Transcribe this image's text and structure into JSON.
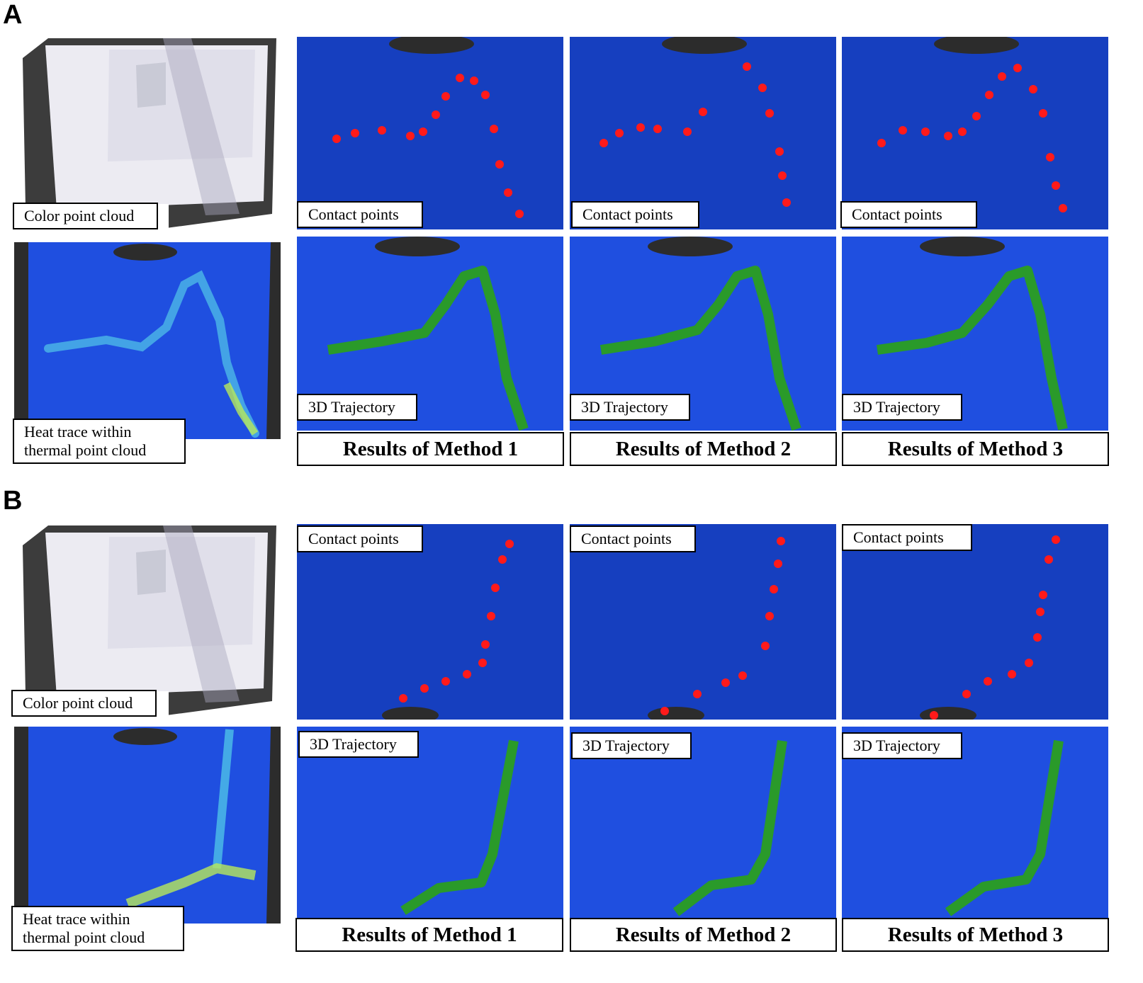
{
  "figure": {
    "panels": [
      {
        "letter": "A",
        "color_label": "Color point cloud",
        "heat_label_line1": "Heat trace within",
        "heat_label_line2": "thermal point cloud",
        "methods": [
          {
            "contact_label": "Contact points",
            "trajectory_label": "3D Trajectory",
            "result_label": "Results of Method 1"
          },
          {
            "contact_label": "Contact points",
            "trajectory_label": "3D Trajectory",
            "result_label": "Results of Method 2"
          },
          {
            "contact_label": "Contact points",
            "trajectory_label": "3D Trajectory",
            "result_label": "Results of Method 3"
          }
        ]
      },
      {
        "letter": "B",
        "color_label": "Color point cloud",
        "heat_label_line1": "Heat trace within",
        "heat_label_line2": "thermal point cloud",
        "methods": [
          {
            "contact_label": "Contact points",
            "trajectory_label": "3D Trajectory",
            "result_label": "Results of Method 1"
          },
          {
            "contact_label": "Contact points",
            "trajectory_label": "3D Trajectory",
            "result_label": "Results of Method 2"
          },
          {
            "contact_label": "Contact points",
            "trajectory_label": "3D Trajectory",
            "result_label": "Results of Method 3"
          }
        ]
      }
    ],
    "colors": {
      "thermal_background": "#1f4fe0",
      "thermal_dark": "#0a2aa8",
      "heat_trace": "#52c8e8",
      "heat_hot": "#b8e85a",
      "contact_point": "#ff1a1a",
      "trajectory": "#2a9a2a",
      "occlusion": "#3a3a3a",
      "wall_white": "#ecebf2"
    }
  }
}
